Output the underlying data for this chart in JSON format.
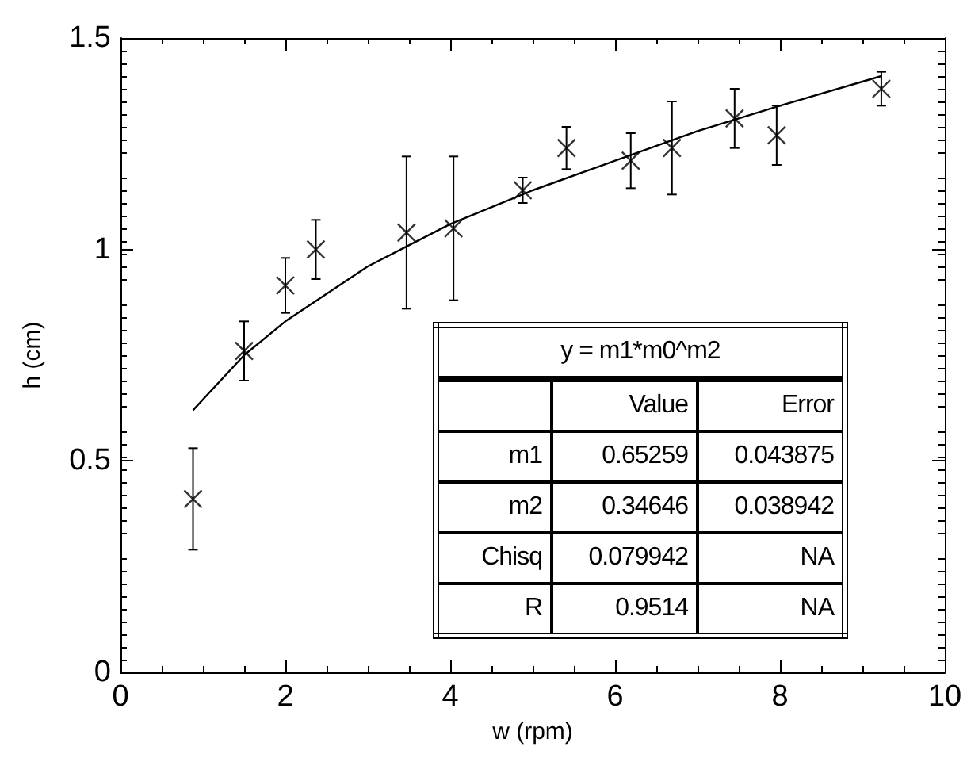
{
  "chart_data": {
    "type": "scatter",
    "xlabel": "w (rpm)",
    "ylabel": "h (cm)",
    "xlim": [
      0,
      10
    ],
    "xticks": [
      0,
      2,
      4,
      6,
      8,
      10
    ],
    "ylim": [
      0,
      1.5
    ],
    "yticks": [
      0,
      0.5,
      1,
      1.5
    ],
    "grid": false,
    "series": [
      {
        "color": "#000000",
        "marker": "cross",
        "x": [
          0.88,
          1.5,
          2.0,
          2.37,
          3.47,
          4.04,
          4.88,
          5.41,
          6.19,
          6.69,
          7.45,
          7.96,
          9.23
        ],
        "values": [
          0.41,
          0.76,
          0.915,
          1.0,
          1.04,
          1.05,
          1.14,
          1.24,
          1.21,
          1.24,
          1.31,
          1.27,
          1.38
        ],
        "errors": [
          0.12,
          0.07,
          0.065,
          0.07,
          0.18,
          0.17,
          0.03,
          0.05,
          0.065,
          0.11,
          0.07,
          0.07,
          0.04
        ]
      },
      {
        "type": "line",
        "color": "#000000",
        "marker": "none",
        "line_style": "solid",
        "x": [
          0.88,
          1.5,
          2,
          3,
          4,
          5,
          6,
          7,
          8,
          9.23
        ],
        "values": [
          0.62,
          0.75,
          0.83,
          0.96,
          1.06,
          1.14,
          1.21,
          1.28,
          1.34,
          1.41
        ]
      }
    ],
    "annotations": [
      "y = m1*m0^m2",
      "Value",
      "Error",
      "m1",
      "0.65259",
      "0.043875",
      "m2",
      "0.34646",
      "0.038942",
      "Chisq",
      "0.079942",
      "NA",
      "R",
      "0.9514",
      "NA"
    ]
  }
}
